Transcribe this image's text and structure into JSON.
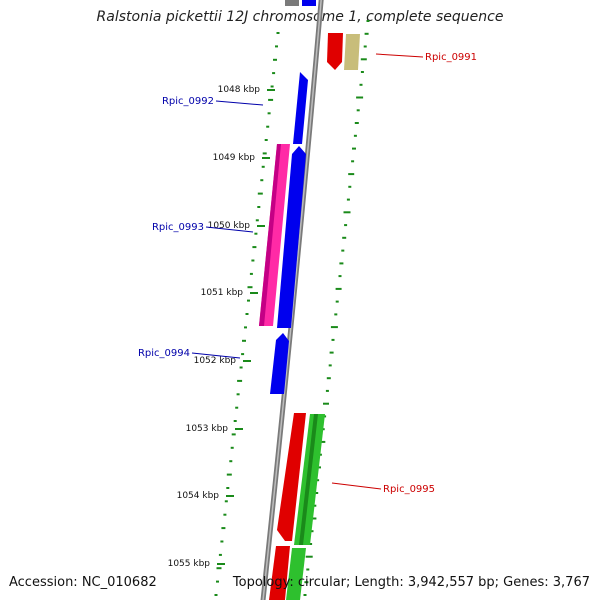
{
  "title": "Ralstonia pickettii 12J chromosome 1, complete sequence",
  "accession": "Accession: NC_010682",
  "topology": "Topology: circular; Length: 3,942,557 bp; Genes: 3,767",
  "ticks": [
    {
      "label": "1048 kbp"
    },
    {
      "label": "1049 kbp"
    },
    {
      "label": "1050 kbp"
    },
    {
      "label": "1051 kbp"
    },
    {
      "label": "1052 kbp"
    },
    {
      "label": "1053 kbp"
    },
    {
      "label": "1054 kbp"
    },
    {
      "label": "1055 kbp"
    }
  ],
  "gene_labels": [
    {
      "label": "Rpic_0991",
      "color": "#cc0000"
    },
    {
      "label": "Rpic_0992",
      "color": "#0000aa"
    },
    {
      "label": "Rpic_0993",
      "color": "#0000aa"
    },
    {
      "label": "Rpic_0994",
      "color": "#0000aa"
    },
    {
      "label": "Rpic_0995",
      "color": "#cc0000"
    }
  ],
  "colors": {
    "backbone": "#888888",
    "forward_cds": "#e00000",
    "reverse_cds": "#0000ee",
    "rrna": "#ff2aa6",
    "green_feature": "#2ec02e",
    "khaki_feature": "#c8bd7a",
    "gc_skew_dots": "#1a8a1a"
  }
}
